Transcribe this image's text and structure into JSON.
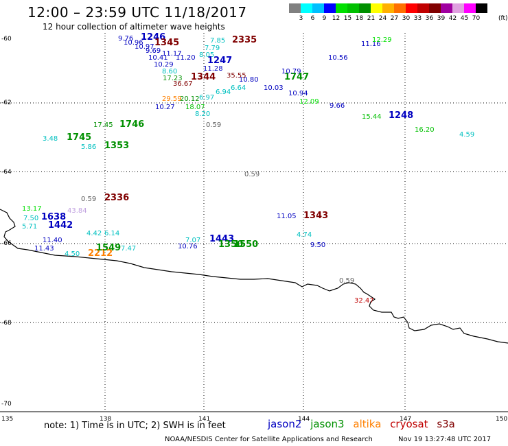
{
  "header": {
    "title": "12:00 – 23:59 UTC 11/18/2017",
    "subtitle": "12 hour collection of altimeter wave heights"
  },
  "legend": {
    "colors": [
      "#808080",
      "#00ffff",
      "#00c0ff",
      "#0000ff",
      "#00e000",
      "#00c000",
      "#009000",
      "#ffff00",
      "#ffb000",
      "#ff7000",
      "#ff0000",
      "#c00000",
      "#800000",
      "#a000a0",
      "#e0a0e0",
      "#ff00ff",
      "#000000"
    ],
    "labels": [
      "3",
      "6",
      "9",
      "12",
      "15",
      "18",
      "21",
      "24",
      "27",
      "30",
      "33",
      "36",
      "39",
      "42",
      "45",
      "70"
    ],
    "unit": "(ft)"
  },
  "axes": {
    "lat_labels": [
      "-60",
      "-62",
      "-64",
      "-66",
      "-68",
      "-70"
    ],
    "lon_labels": [
      "135",
      "138",
      "141",
      "144",
      "147",
      "150"
    ]
  },
  "annotations": [
    {
      "t": "9.76",
      "c": "#0000c0"
    },
    {
      "t": "1246",
      "c": "#0000c0",
      "b": 1
    },
    {
      "t": "10.96",
      "c": "#0000c0"
    },
    {
      "t": "10.97",
      "c": "#0000c0"
    },
    {
      "t": "1345",
      "c": "#800000",
      "b": 1
    },
    {
      "t": "7.85",
      "c": "#00c0c0"
    },
    {
      "t": "2335",
      "c": "#800000",
      "b": 1
    },
    {
      "t": "7.79",
      "c": "#00c0c0"
    },
    {
      "t": "9.69",
      "c": "#0000c0"
    },
    {
      "t": "11.17",
      "c": "#0000c0"
    },
    {
      "t": "8.05",
      "c": "#00c0c0"
    },
    {
      "t": "10.41",
      "c": "#0000c0"
    },
    {
      "t": "11.20",
      "c": "#0000c0"
    },
    {
      "t": "10.29",
      "c": "#0000c0"
    },
    {
      "t": "1247",
      "c": "#0000c0",
      "b": 1
    },
    {
      "t": "8.60",
      "c": "#00c0c0"
    },
    {
      "t": "11.28",
      "c": "#0000c0"
    },
    {
      "t": "35.55",
      "c": "#800000"
    },
    {
      "t": "17.23",
      "c": "#009000"
    },
    {
      "t": "36.67",
      "c": "#800000"
    },
    {
      "t": "1344",
      "c": "#800000",
      "b": 1
    },
    {
      "t": "29.59",
      "c": "#ff8000"
    },
    {
      "t": "20.12",
      "c": "#009000"
    },
    {
      "t": "10.27",
      "c": "#0000c0"
    },
    {
      "t": "18.07",
      "c": "#00c000"
    },
    {
      "t": "8.20",
      "c": "#00c0c0"
    },
    {
      "t": "6.94",
      "c": "#00c0c0"
    },
    {
      "t": "6.97",
      "c": "#00c0c0"
    },
    {
      "t": "6.64",
      "c": "#00c0c0"
    },
    {
      "t": "10.03",
      "c": "#0000c0"
    },
    {
      "t": "10.80",
      "c": "#0000c0"
    },
    {
      "t": "1747",
      "c": "#009000",
      "b": 1
    },
    {
      "t": "10.79",
      "c": "#0000c0"
    },
    {
      "t": "10.94",
      "c": "#0000c0"
    },
    {
      "t": "9.66",
      "c": "#0000c0"
    },
    {
      "t": "10.56",
      "c": "#0000c0"
    },
    {
      "t": "11.16",
      "c": "#0000c0"
    },
    {
      "t": "12.29",
      "c": "#00e000"
    },
    {
      "t": "12.09",
      "c": "#00e000"
    },
    {
      "t": "0.59",
      "c": "#606060"
    },
    {
      "t": "17.45",
      "c": "#009000"
    },
    {
      "t": "1746",
      "c": "#009000",
      "b": 1
    },
    {
      "t": "3.48",
      "c": "#00c0c0"
    },
    {
      "t": "1745",
      "c": "#009000",
      "b": 1
    },
    {
      "t": "5.86",
      "c": "#00c0c0"
    },
    {
      "t": "1353",
      "c": "#009000",
      "b": 1
    },
    {
      "t": "15.44",
      "c": "#00c000"
    },
    {
      "t": "1248",
      "c": "#0000c0",
      "b": 1
    },
    {
      "t": "16.20",
      "c": "#00c000"
    },
    {
      "t": "4.59",
      "c": "#00c0c0"
    },
    {
      "t": "0.59",
      "c": "#606060"
    },
    {
      "t": "0.59",
      "c": "#606060"
    },
    {
      "t": "2336",
      "c": "#800000",
      "b": 1
    },
    {
      "t": "13.17",
      "c": "#00e000"
    },
    {
      "t": "43.84",
      "c": "#c0a0e0"
    },
    {
      "t": "7.50",
      "c": "#00c0c0"
    },
    {
      "t": "1638",
      "c": "#0000c0",
      "b": 1
    },
    {
      "t": "5.71",
      "c": "#00c0c0"
    },
    {
      "t": "1442",
      "c": "#0000c0",
      "b": 1
    },
    {
      "t": "11.40",
      "c": "#0000c0"
    },
    {
      "t": "4.42",
      "c": "#00c0c0"
    },
    {
      "t": "6.14",
      "c": "#00c0c0"
    },
    {
      "t": "11.43",
      "c": "#0000c0"
    },
    {
      "t": "4.50",
      "c": "#00c0c0"
    },
    {
      "t": "2212",
      "c": "#ff8000",
      "b": 1
    },
    {
      "t": "1549",
      "c": "#009000",
      "b": 1
    },
    {
      "t": "7.47",
      "c": "#00c0c0"
    },
    {
      "t": "11.05",
      "c": "#0000c0"
    },
    {
      "t": "1343",
      "c": "#800000",
      "b": 1
    },
    {
      "t": "4.74",
      "c": "#00c0c0"
    },
    {
      "t": "9.50",
      "c": "#0000c0"
    },
    {
      "t": "7.07",
      "c": "#00c0c0"
    },
    {
      "t": "1443",
      "c": "#0000c0",
      "b": 1
    },
    {
      "t": "10.76",
      "c": "#0000c0"
    },
    {
      "t": "1350",
      "c": "#009000",
      "b": 1
    },
    {
      "t": "1550",
      "c": "#009000",
      "b": 1
    },
    {
      "t": "0.59",
      "c": "#606060"
    },
    {
      "t": "32.47",
      "c": "#c00000"
    }
  ],
  "footer": {
    "note": "note:  1) Time is in UTC;  2) SWH is in feet",
    "missions": [
      {
        "name": "jason2",
        "color": "#0000c0"
      },
      {
        "name": "jason3",
        "color": "#009000"
      },
      {
        "name": "altika",
        "color": "#ff8000"
      },
      {
        "name": "cryosat",
        "color": "#c00000"
      },
      {
        "name": "s3a",
        "color": "#800000"
      }
    ],
    "credit": "NOAA/NESDIS Center for Satellite Applications and Research",
    "timestamp": "Nov 19 13:27:48 UTC 2017"
  }
}
